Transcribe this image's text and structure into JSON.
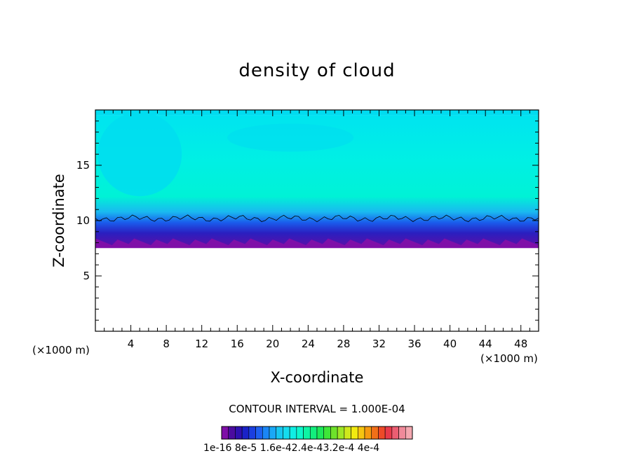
{
  "chart_data": {
    "type": "heatmap",
    "title": "density of cloud",
    "xlabel": "X-coordinate",
    "ylabel": "Z-coordinate",
    "x_unit": "(×1000 m)",
    "y_unit": "(×1000 m)",
    "xlim": [
      0,
      50
    ],
    "ylim": [
      0,
      20
    ],
    "xticks": [
      "4",
      "8",
      "12",
      "16",
      "20",
      "24",
      "28",
      "32",
      "36",
      "40",
      "44",
      "48"
    ],
    "yticks": [
      "5",
      "10",
      "15"
    ],
    "contour_interval_text": "CONTOUR INTERVAL = 1.000E-04",
    "colorbar_text": "1e-16  8e-5  1.6e-42.4e-43.2e-4  4e-4",
    "colorbar_range": [
      1e-16,
      0.0004
    ],
    "cloud_layer": {
      "base_z": 7.7,
      "top_z": 19.5
    },
    "contour_line_z": 10.2
  },
  "colors": {
    "colorbar": [
      "#7f0fa8",
      "#4b0ba0",
      "#2f10b0",
      "#1a22c8",
      "#1b3fe0",
      "#1e60f0",
      "#1a86f6",
      "#1aa8f6",
      "#17c6f0",
      "#15dbee",
      "#10eee4",
      "#0ef6cc",
      "#0ef4a4",
      "#12ee7e",
      "#1ee85a",
      "#3ee638",
      "#6ee22a",
      "#9ee626",
      "#cfe81c",
      "#f2ea10",
      "#f6c410",
      "#f69a10",
      "#f27018",
      "#ee4a28",
      "#e83a4a",
      "#ec5e72",
      "#f08a9a",
      "#f4a8b0"
    ],
    "upper_cloud": "#00f0e0",
    "mid_cloud": "#00dcf0",
    "low_cloud": "#10a0f0",
    "base_cloud": "#7f0fa8"
  }
}
